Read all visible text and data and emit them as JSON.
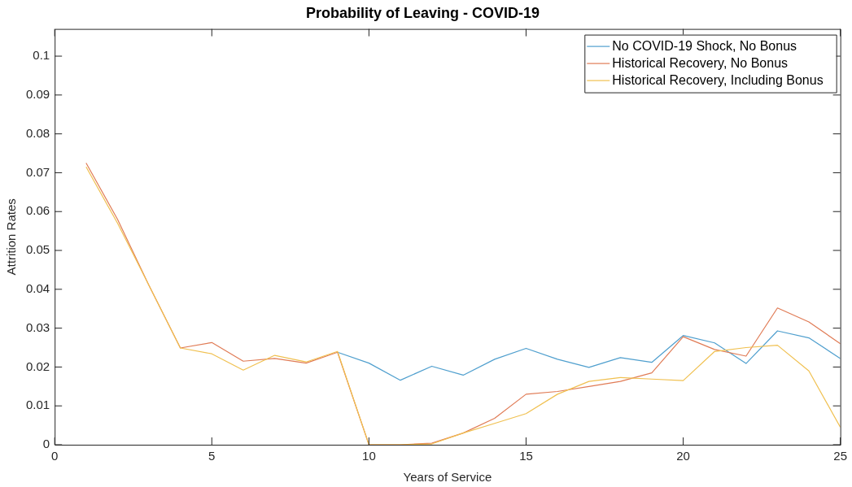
{
  "chart_data": {
    "type": "line",
    "title": "Probability of Leaving - COVID-19",
    "xlabel": "Years of Service",
    "ylabel": "Attrition Rates",
    "x": [
      1,
      2,
      3,
      4,
      5,
      6,
      7,
      8,
      9,
      10,
      11,
      12,
      13,
      14,
      15,
      16,
      17,
      18,
      19,
      20,
      21,
      22,
      23,
      24,
      25
    ],
    "series": [
      {
        "name": "No COVID-19 Shock, No Bonus",
        "color": "#4f9fce",
        "values": [
          null,
          null,
          null,
          null,
          null,
          null,
          null,
          null,
          0.0238,
          0.021,
          0.0166,
          0.0202,
          0.0179,
          0.022,
          0.0248,
          0.022,
          0.0199,
          0.0224,
          0.0212,
          0.0281,
          0.0262,
          0.0209,
          0.0293,
          0.0275,
          0.0222
        ]
      },
      {
        "name": "Historical Recovery, No Bonus",
        "color": "#e07b55",
        "values": [
          0.0725,
          0.058,
          0.041,
          0.0249,
          0.0263,
          0.0215,
          0.0222,
          0.021,
          0.0238,
          0,
          0,
          0.0004,
          0.003,
          0.0068,
          0.013,
          0.0137,
          0.015,
          0.0163,
          0.0185,
          0.0278,
          0.0245,
          0.0228,
          0.0352,
          0.0316,
          0.026
        ]
      },
      {
        "name": "Historical Recovery, Including Bonus",
        "color": "#f0c050",
        "values": [
          0.0715,
          0.057,
          0.041,
          0.0249,
          0.0234,
          0.0192,
          0.023,
          0.0213,
          0.024,
          0,
          0,
          0.0002,
          0.003,
          0.0055,
          0.008,
          0.013,
          0.0163,
          0.0173,
          0.0169,
          0.0165,
          0.024,
          0.025,
          0.0256,
          0.019,
          0.0045
        ]
      }
    ],
    "xlim": [
      0,
      25
    ],
    "xticks": [
      0,
      5,
      10,
      15,
      20,
      25
    ],
    "ylim": [
      0,
      0.107
    ],
    "yticks": [
      0,
      0.01,
      0.02,
      0.03,
      0.04,
      0.05,
      0.06,
      0.07,
      0.08,
      0.09,
      0.1
    ],
    "grid": false,
    "legend": "top right",
    "marker": "none",
    "line_style": "solid"
  }
}
